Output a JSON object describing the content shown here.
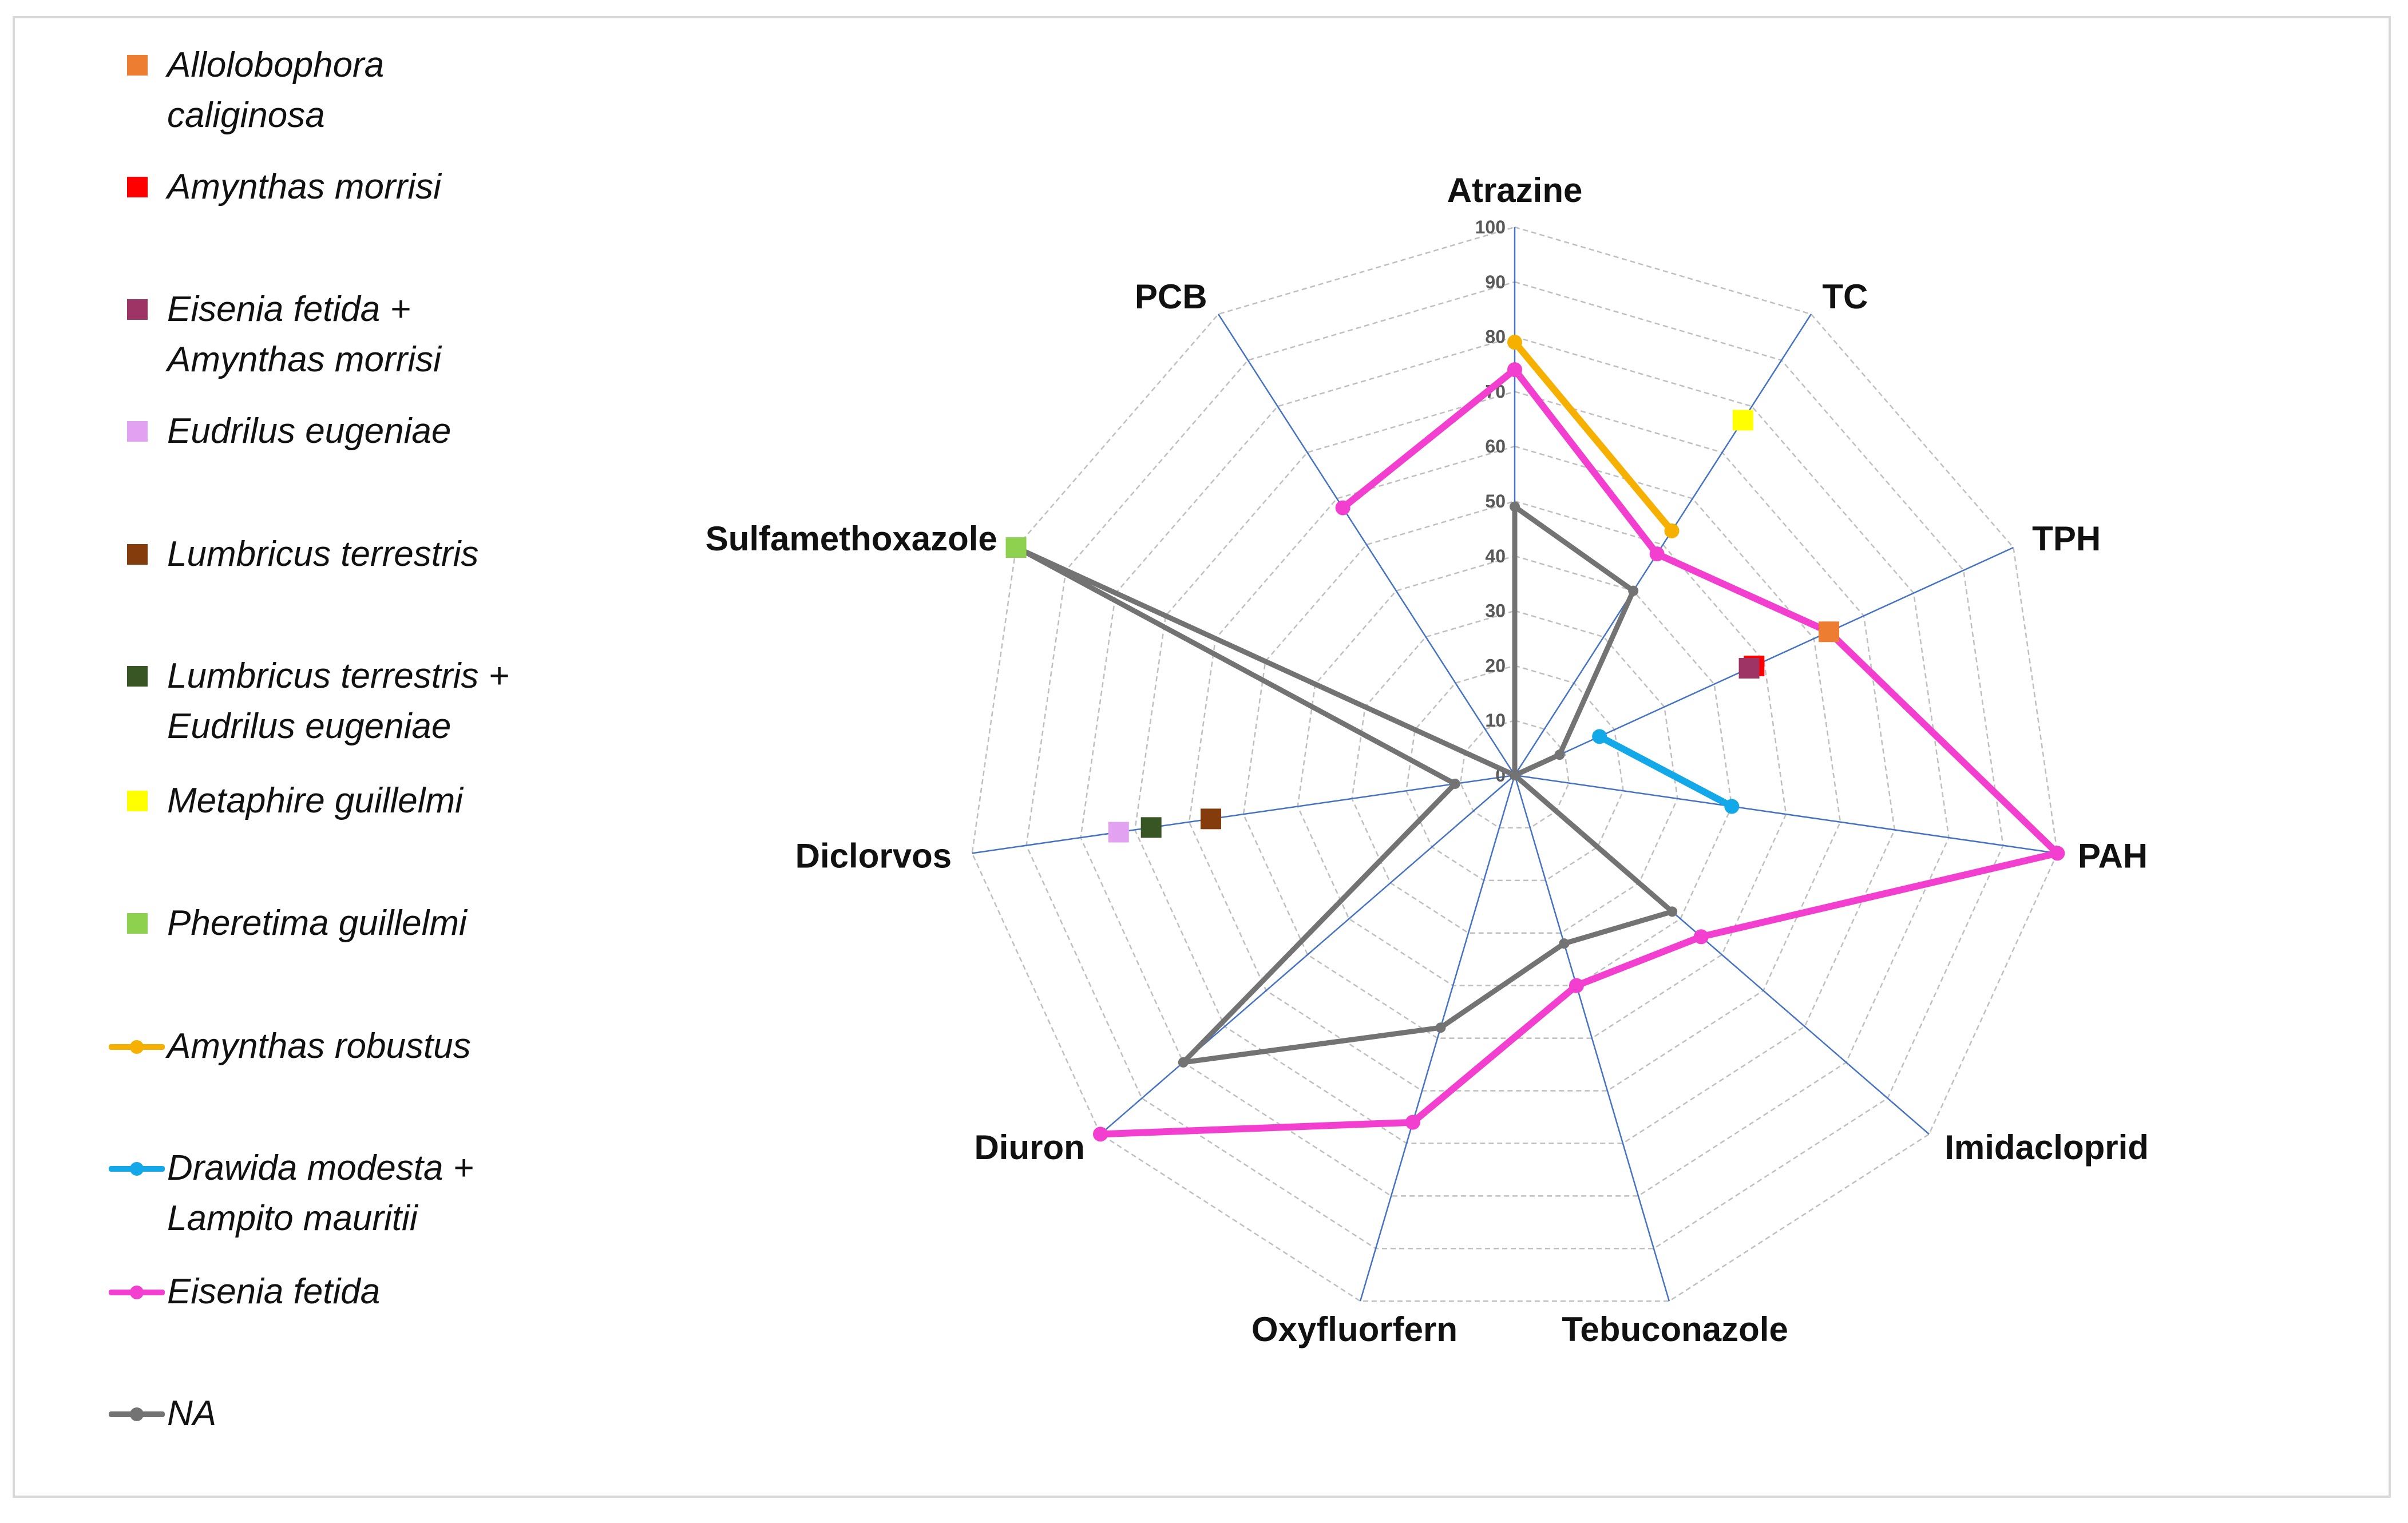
{
  "chart_data": {
    "type": "radar",
    "title": "",
    "axes": [
      "Atrazine",
      "TC",
      "TPH",
      "PAH",
      "Imidacloprid",
      "Tebuconazole",
      "Oxyfluorfern",
      "Diuron",
      "Diclorvos",
      "Sulfamethoxazole",
      "PCB"
    ],
    "ticks": [
      "0",
      "10",
      "20",
      "30",
      "40",
      "50",
      "60",
      "70",
      "80",
      "90",
      "100"
    ],
    "range": [
      0,
      100
    ],
    "line_series": [
      {
        "name": "Amynthas robustus",
        "color": "#f5b000",
        "values": [
          79,
          53,
          null,
          null,
          null,
          null,
          null,
          null,
          null,
          null,
          null
        ]
      },
      {
        "name": "Drawida modesta + Lampito mauritii",
        "color": "#13a8e8",
        "values": [
          null,
          null,
          17,
          40,
          null,
          null,
          null,
          null,
          null,
          null,
          null
        ]
      },
      {
        "name": "Eisenia fetida",
        "color": "#f23fcf",
        "values": [
          74,
          48,
          63,
          100,
          45,
          40,
          66,
          100,
          null,
          null,
          58
        ]
      },
      {
        "name": "NA",
        "color": "#737373",
        "values": [
          49,
          40,
          9,
          0,
          38,
          32,
          48,
          80,
          11,
          99,
          0
        ]
      }
    ],
    "point_series": [
      {
        "name": "Allolobophora caliginosa",
        "color": "#ed7d31",
        "axis": "TPH",
        "value": 63
      },
      {
        "name": "Amynthas morrisi",
        "color": "#ff0000",
        "axis": "TPH",
        "value": 48
      },
      {
        "name": "Eisenia fetida + Amynthas morrisi",
        "color": "#9e3366",
        "axis": "TPH",
        "value": 47
      },
      {
        "name": "Eudrilus eugeniae",
        "color": "#e3a1f2",
        "axis": "Diclorvos",
        "value": 73
      },
      {
        "name": "Lumbricus terrestris",
        "color": "#843c0c",
        "axis": "Diclorvos",
        "value": 56
      },
      {
        "name": "Lumbricus terrestris + Eudrilus eugeniae",
        "color": "#375623",
        "axis": "Diclorvos",
        "value": 67
      },
      {
        "name": "Metaphire guillelmi",
        "color": "#ffff00",
        "axis": "TC",
        "value": 77
      },
      {
        "name": "Pheretima guillelmi",
        "color": "#8ed14f",
        "axis": "Sulfamethoxazole",
        "value": 100
      }
    ]
  },
  "legend": {
    "items": [
      {
        "lines": [
          "Allolobophora",
          "caliginosa"
        ],
        "kind": "square",
        "color": "#ed7d31"
      },
      {
        "lines": [
          "Amynthas morrisi"
        ],
        "kind": "square",
        "color": "#ff0000"
      },
      {
        "lines": [
          "Eisenia fetida +",
          "Amynthas morrisi"
        ],
        "kind": "square",
        "color": "#9e3366"
      },
      {
        "lines": [
          "Eudrilus eugeniae"
        ],
        "kind": "square",
        "color": "#e3a1f2"
      },
      {
        "lines": [
          "Lumbricus terrestris"
        ],
        "kind": "square",
        "color": "#843c0c"
      },
      {
        "lines": [
          "Lumbricus terrestris +",
          "Eudrilus eugeniae"
        ],
        "kind": "square",
        "color": "#375623"
      },
      {
        "lines": [
          "Metaphire guillelmi"
        ],
        "kind": "square",
        "color": "#ffff00"
      },
      {
        "lines": [
          "Pheretima guillelmi"
        ],
        "kind": "square",
        "color": "#8ed14f"
      },
      {
        "lines": [
          "Amynthas robustus"
        ],
        "kind": "line",
        "color": "#f5b000"
      },
      {
        "lines": [
          "Drawida modesta +",
          "Lampito mauritii"
        ],
        "kind": "line",
        "color": "#13a8e8"
      },
      {
        "lines": [
          "Eisenia fetida"
        ],
        "kind": "line",
        "color": "#f23fcf"
      },
      {
        "lines": [
          "NA"
        ],
        "kind": "line",
        "color": "#737373"
      }
    ]
  }
}
